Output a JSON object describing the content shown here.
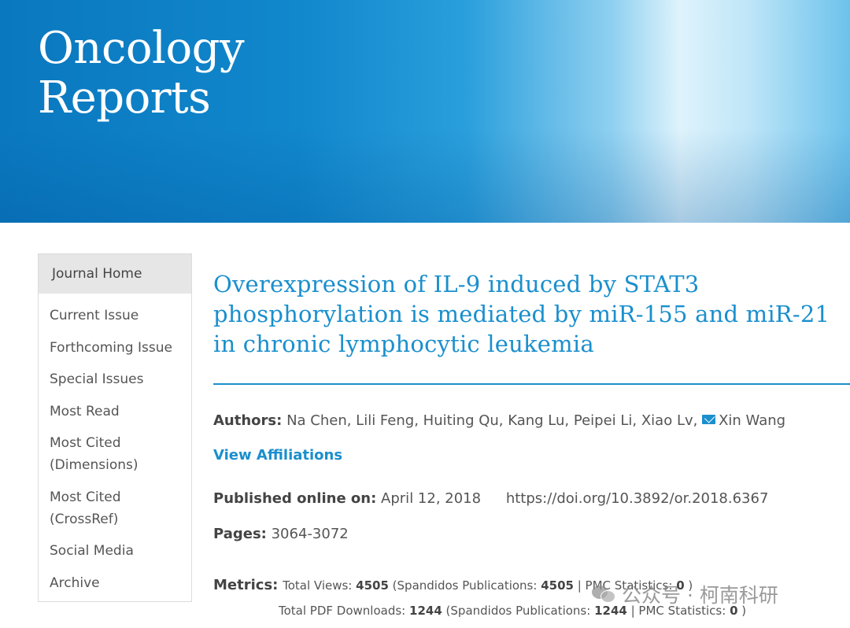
{
  "header": {
    "journal_title_line1": "Oncology",
    "journal_title_line2": "Reports"
  },
  "sidebar": {
    "home_label": "Journal Home",
    "items": [
      {
        "label": "Current Issue"
      },
      {
        "label": "Forthcoming Issue"
      },
      {
        "label": "Special Issues"
      },
      {
        "label": "Most Read"
      },
      {
        "label": "Most Cited (Dimensions)"
      },
      {
        "label": "Most Cited (CrossRef)"
      },
      {
        "label": "Social Media"
      },
      {
        "label": "Archive"
      }
    ]
  },
  "article": {
    "title_line1": "Overexpression of IL-9 induced by STAT3",
    "title_line2": "phosphorylation is mediated by miR-155 and miR-21",
    "title_line3": "in chronic lymphocytic leukemia",
    "authors_label": "Authors:",
    "authors": "Na Chen, Lili Feng, Huiting Qu, Kang Lu, Peipei Li, Xiao Lv,",
    "corresponding_author": "Xin Wang",
    "view_affiliations": "View Affiliations",
    "published_label": "Published online on:",
    "published_date": "April 12, 2018",
    "doi": "https://doi.org/10.3892/or.2018.6367",
    "pages_label": "Pages:",
    "pages": "3064-3072",
    "metrics_label": "Metrics:",
    "views_prefix": "Total Views:",
    "views_total": "4505",
    "views_spandidos_prefix": "(Spandidos Publications:",
    "views_spandidos": "4505",
    "views_pmc_prefix": "| PMC Statistics:",
    "views_pmc": "0",
    "views_suffix": ")",
    "pdf_prefix": "Total PDF Downloads:",
    "pdf_total": "1244",
    "pdf_spandidos_prefix": "(Spandidos Publications:",
    "pdf_spandidos": "1244",
    "pdf_pmc_prefix": "| PMC Statistics:",
    "pdf_pmc": "0",
    "pdf_suffix": ")"
  },
  "watermark": {
    "text": "公众号 · 柯南科研"
  }
}
